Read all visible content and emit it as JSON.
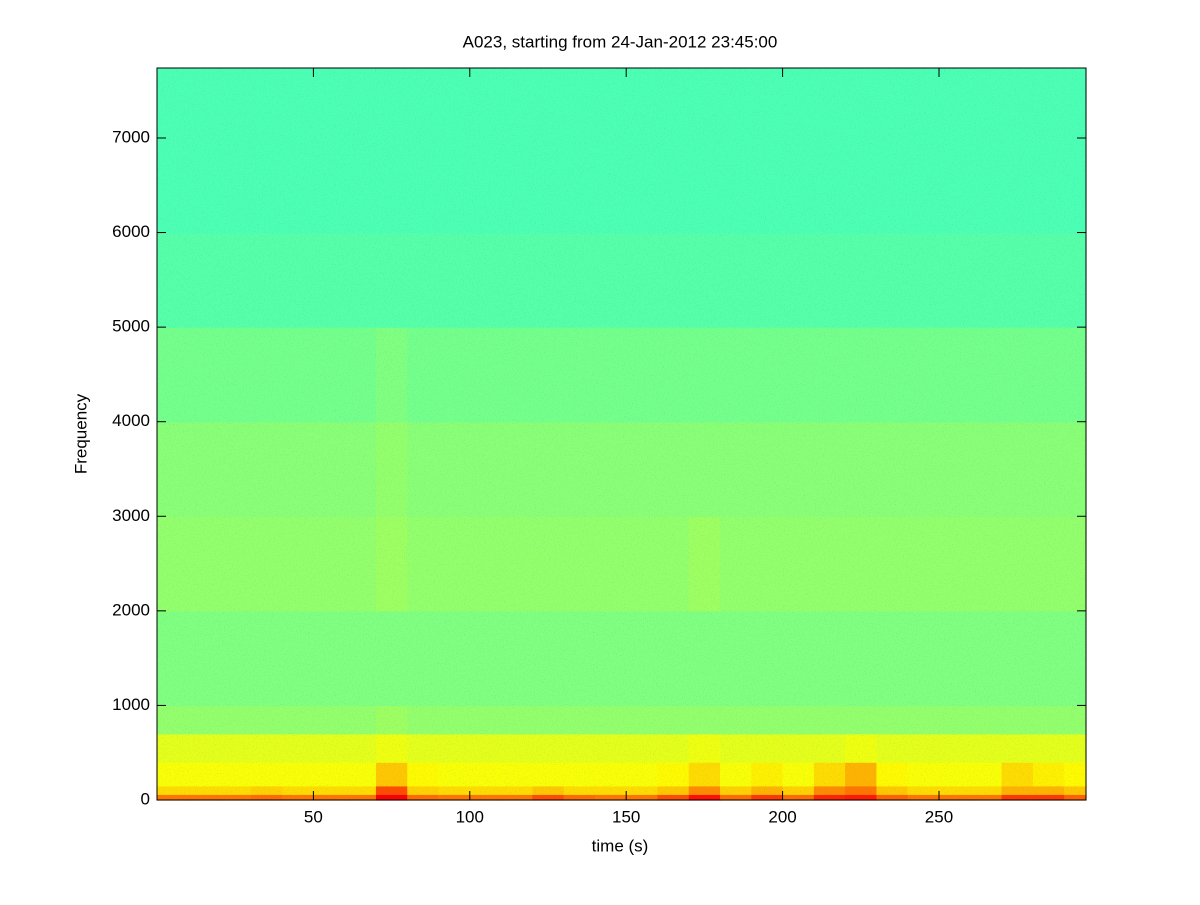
{
  "chart_data": {
    "type": "spectrogram",
    "title": "A023, starting from 24-Jan-2012 23:45:00",
    "xlabel": "time (s)",
    "ylabel": "Frequency",
    "xlim": [
      0,
      297
    ],
    "ylim": [
      0,
      7740
    ],
    "xticks": [
      50,
      100,
      150,
      200,
      250
    ],
    "yticks": [
      0,
      1000,
      2000,
      3000,
      4000,
      5000,
      6000,
      7000
    ],
    "colormap": "jet",
    "clim": [
      0,
      1
    ],
    "box": true,
    "xbins": [
      0,
      10,
      20,
      30,
      40,
      50,
      60,
      70,
      80,
      90,
      100,
      110,
      120,
      130,
      140,
      150,
      160,
      170,
      180,
      190,
      200,
      210,
      220,
      230,
      240,
      250,
      260,
      270,
      280,
      290,
      297
    ],
    "ybins": [
      0,
      60,
      150,
      400,
      700,
      1000,
      2000,
      3000,
      4000,
      5000,
      6000,
      7000,
      7740
    ],
    "values": [
      [
        0.76,
        0.76,
        0.76,
        0.77,
        0.76,
        0.76,
        0.76,
        0.88,
        0.77,
        0.76,
        0.76,
        0.76,
        0.8,
        0.77,
        0.76,
        0.76,
        0.8,
        0.86,
        0.77,
        0.82,
        0.77,
        0.84,
        0.85,
        0.78,
        0.76,
        0.76,
        0.76,
        0.82,
        0.82,
        0.78
      ],
      [
        0.66,
        0.66,
        0.66,
        0.67,
        0.66,
        0.66,
        0.66,
        0.8,
        0.67,
        0.66,
        0.66,
        0.66,
        0.68,
        0.66,
        0.66,
        0.66,
        0.68,
        0.74,
        0.67,
        0.7,
        0.67,
        0.74,
        0.76,
        0.68,
        0.66,
        0.66,
        0.66,
        0.7,
        0.7,
        0.68
      ],
      [
        0.62,
        0.62,
        0.62,
        0.62,
        0.62,
        0.62,
        0.62,
        0.68,
        0.63,
        0.62,
        0.62,
        0.62,
        0.62,
        0.62,
        0.62,
        0.62,
        0.63,
        0.66,
        0.62,
        0.64,
        0.62,
        0.66,
        0.7,
        0.63,
        0.62,
        0.62,
        0.62,
        0.66,
        0.64,
        0.63
      ],
      [
        0.6,
        0.6,
        0.6,
        0.6,
        0.6,
        0.6,
        0.6,
        0.61,
        0.6,
        0.6,
        0.6,
        0.6,
        0.6,
        0.6,
        0.6,
        0.6,
        0.6,
        0.61,
        0.6,
        0.6,
        0.6,
        0.6,
        0.61,
        0.6,
        0.6,
        0.6,
        0.6,
        0.6,
        0.6,
        0.6
      ],
      [
        0.52,
        0.52,
        0.52,
        0.52,
        0.52,
        0.52,
        0.52,
        0.53,
        0.52,
        0.52,
        0.52,
        0.52,
        0.52,
        0.52,
        0.52,
        0.52,
        0.52,
        0.52,
        0.52,
        0.52,
        0.52,
        0.52,
        0.52,
        0.52,
        0.52,
        0.52,
        0.52,
        0.52,
        0.52,
        0.52
      ],
      [
        0.5,
        0.5,
        0.5,
        0.5,
        0.5,
        0.5,
        0.5,
        0.5,
        0.5,
        0.5,
        0.5,
        0.5,
        0.5,
        0.5,
        0.5,
        0.5,
        0.5,
        0.5,
        0.5,
        0.5,
        0.5,
        0.5,
        0.5,
        0.5,
        0.5,
        0.5,
        0.5,
        0.5,
        0.5,
        0.5
      ],
      [
        0.52,
        0.52,
        0.52,
        0.52,
        0.52,
        0.52,
        0.52,
        0.53,
        0.52,
        0.52,
        0.52,
        0.52,
        0.52,
        0.52,
        0.52,
        0.52,
        0.52,
        0.53,
        0.52,
        0.52,
        0.52,
        0.52,
        0.52,
        0.52,
        0.52,
        0.52,
        0.52,
        0.52,
        0.52,
        0.52
      ],
      [
        0.51,
        0.51,
        0.51,
        0.51,
        0.51,
        0.51,
        0.51,
        0.52,
        0.51,
        0.51,
        0.51,
        0.51,
        0.51,
        0.51,
        0.51,
        0.51,
        0.51,
        0.51,
        0.51,
        0.51,
        0.51,
        0.51,
        0.51,
        0.51,
        0.51,
        0.51,
        0.51,
        0.51,
        0.51,
        0.51
      ],
      [
        0.49,
        0.49,
        0.49,
        0.49,
        0.49,
        0.49,
        0.49,
        0.5,
        0.49,
        0.49,
        0.49,
        0.49,
        0.49,
        0.49,
        0.49,
        0.49,
        0.49,
        0.49,
        0.49,
        0.49,
        0.49,
        0.49,
        0.49,
        0.49,
        0.49,
        0.49,
        0.49,
        0.49,
        0.49,
        0.49
      ],
      [
        0.46,
        0.46,
        0.46,
        0.46,
        0.46,
        0.46,
        0.46,
        0.46,
        0.46,
        0.46,
        0.46,
        0.46,
        0.46,
        0.46,
        0.46,
        0.46,
        0.46,
        0.46,
        0.46,
        0.46,
        0.46,
        0.46,
        0.46,
        0.46,
        0.46,
        0.46,
        0.46,
        0.46,
        0.46,
        0.46
      ],
      [
        0.45,
        0.45,
        0.45,
        0.45,
        0.45,
        0.45,
        0.45,
        0.45,
        0.45,
        0.45,
        0.45,
        0.45,
        0.45,
        0.45,
        0.45,
        0.45,
        0.45,
        0.45,
        0.45,
        0.45,
        0.45,
        0.45,
        0.45,
        0.45,
        0.45,
        0.45,
        0.45,
        0.45,
        0.45,
        0.45
      ],
      [
        0.45,
        0.45,
        0.45,
        0.45,
        0.45,
        0.45,
        0.45,
        0.45,
        0.45,
        0.45,
        0.45,
        0.45,
        0.45,
        0.45,
        0.45,
        0.45,
        0.45,
        0.45,
        0.45,
        0.45,
        0.45,
        0.45,
        0.45,
        0.45,
        0.45,
        0.45,
        0.45,
        0.45,
        0.45,
        0.45
      ]
    ]
  }
}
